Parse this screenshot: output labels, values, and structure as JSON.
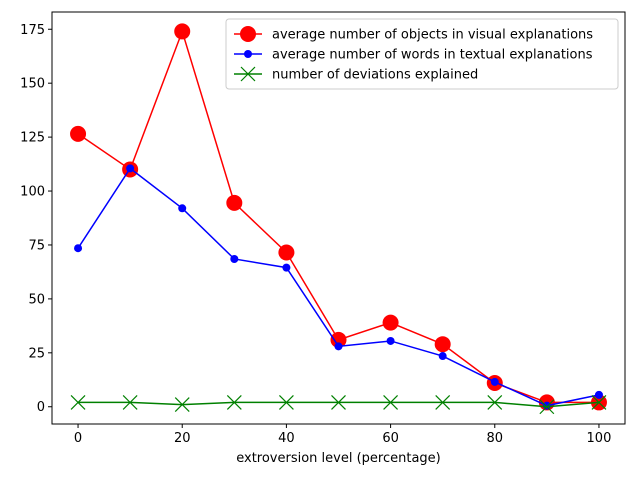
{
  "chart_data": {
    "type": "line",
    "title": "",
    "xlabel": "extroversion level (percentage)",
    "ylabel": "",
    "x": [
      0,
      10,
      20,
      30,
      40,
      50,
      60,
      70,
      80,
      90,
      100
    ],
    "xlim": [
      -5,
      105
    ],
    "ylim": [
      -8,
      183
    ],
    "xticks": [
      0,
      20,
      40,
      60,
      80,
      100
    ],
    "yticks": [
      0,
      25,
      50,
      75,
      100,
      125,
      150,
      175
    ],
    "grid": false,
    "legend_position": "upper right",
    "series": [
      {
        "name": "average number of objects in visual explanations",
        "color": "#ff0000",
        "marker": "circle-large",
        "values": [
          126.5,
          110,
          174,
          94.5,
          71.5,
          31,
          39,
          29,
          11,
          2,
          2
        ]
      },
      {
        "name": "average number of words in textual explanations",
        "color": "#0000ff",
        "marker": "circle-small",
        "values": [
          73.5,
          110.5,
          92,
          68.5,
          64.5,
          28,
          30.5,
          23.5,
          11.5,
          0.5,
          5.5
        ]
      },
      {
        "name": "number of deviations explained",
        "color": "#008000",
        "marker": "x",
        "values": [
          2,
          2,
          1,
          2,
          2,
          2,
          2,
          2,
          2,
          0,
          2
        ]
      }
    ]
  }
}
